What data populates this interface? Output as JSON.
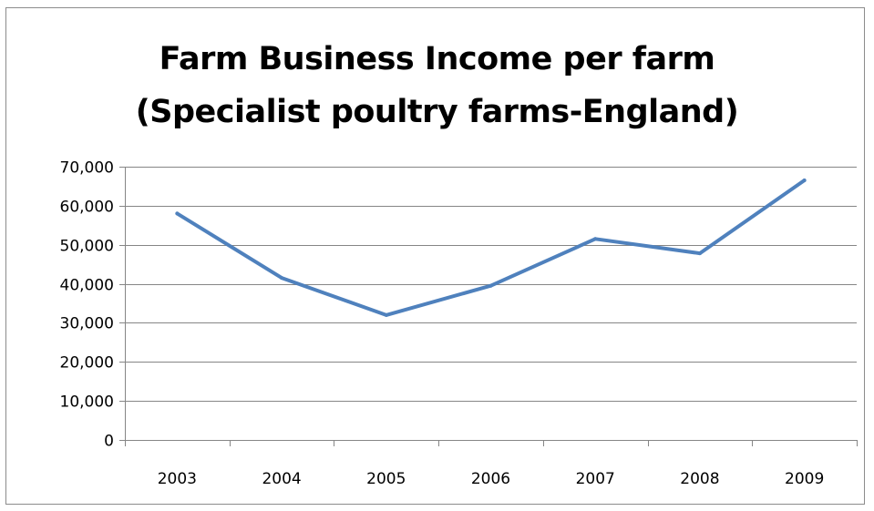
{
  "chart_data": {
    "type": "line",
    "title": "Farm Business Income per farm",
    "subtitle": "(Specialist poultry farms-England)",
    "xlabel": "",
    "ylabel": "",
    "categories": [
      "2003",
      "2004",
      "2005",
      "2006",
      "2007",
      "2008",
      "2009"
    ],
    "series": [
      {
        "values": [
          58000,
          41500,
          32000,
          39500,
          51500,
          47800,
          66500
        ],
        "color": "#4f81bd"
      }
    ],
    "ylim": [
      0,
      70000
    ],
    "yticks": [
      0,
      10000,
      20000,
      30000,
      40000,
      50000,
      60000,
      70000
    ],
    "ytick_labels": [
      "0",
      "10,000",
      "20,000",
      "30,000",
      "40,000",
      "50,000",
      "60,000",
      "70,000"
    ],
    "grid": true,
    "legend": "none",
    "gridline_color": "#868686",
    "axis_color": "#868686"
  }
}
